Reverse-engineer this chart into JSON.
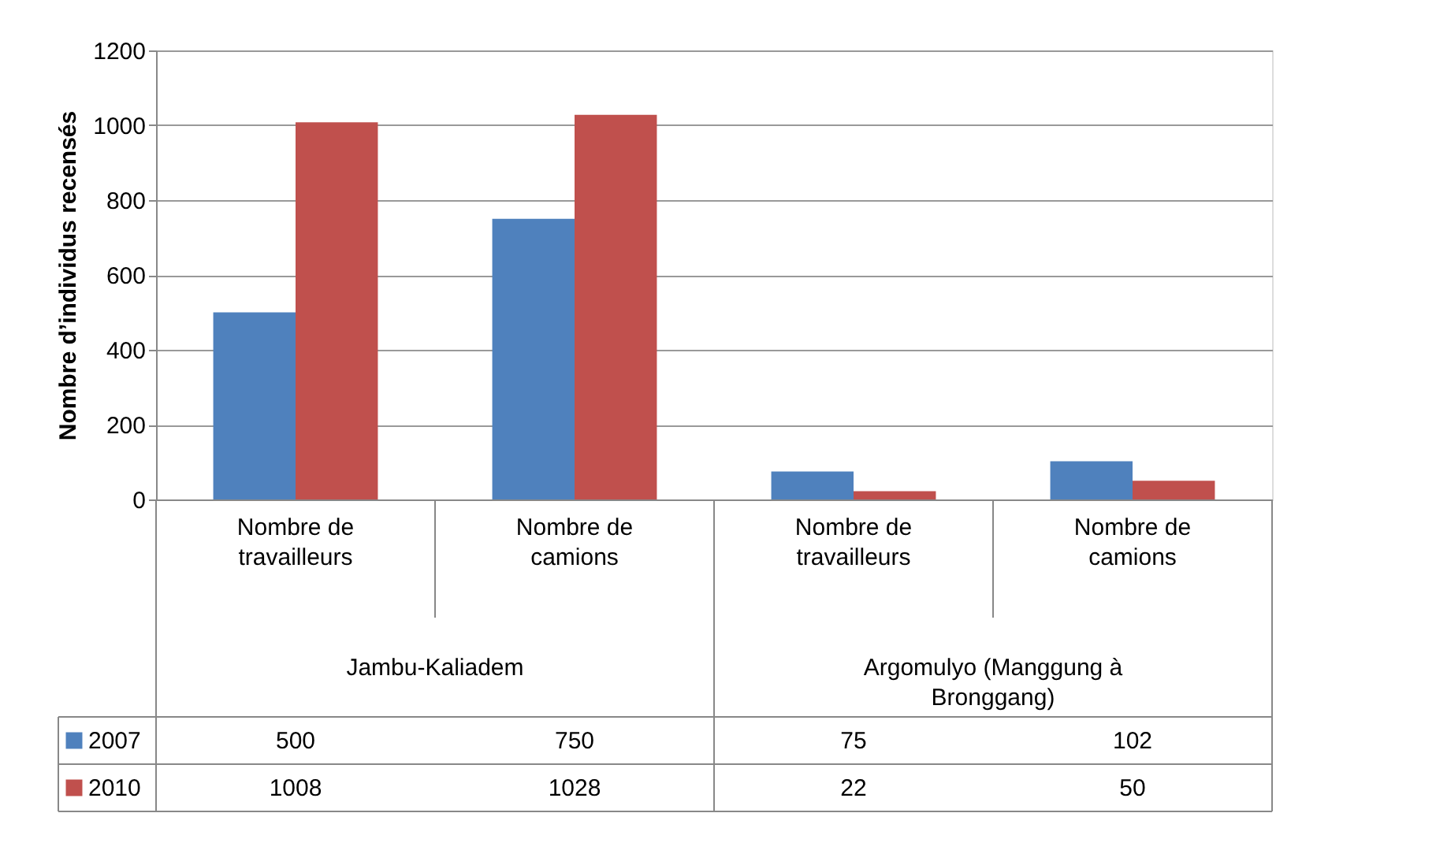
{
  "chart_data": {
    "type": "bar",
    "ylabel": "Nombre d’individus recensés",
    "categories": [
      "Nombre de travailleurs",
      "Nombre de camions",
      "Nombre de travailleurs",
      "Nombre de camions"
    ],
    "series": [
      {
        "name": "2007",
        "color": "#4f81bd",
        "values": [
          500,
          750,
          75,
          102
        ]
      },
      {
        "name": "2010",
        "color": "#c0504d",
        "values": [
          1008,
          1028,
          22,
          50
        ]
      }
    ],
    "ylim": [
      0,
      1200
    ],
    "yticks": [
      0,
      200,
      400,
      600,
      800,
      1000,
      1200
    ],
    "grid": "y",
    "legend": "bottom",
    "data_labels": true,
    "annotations": [
      "Jambu-Kaliadem",
      "Argomulyo (Manggung à Bronggang)"
    ]
  }
}
